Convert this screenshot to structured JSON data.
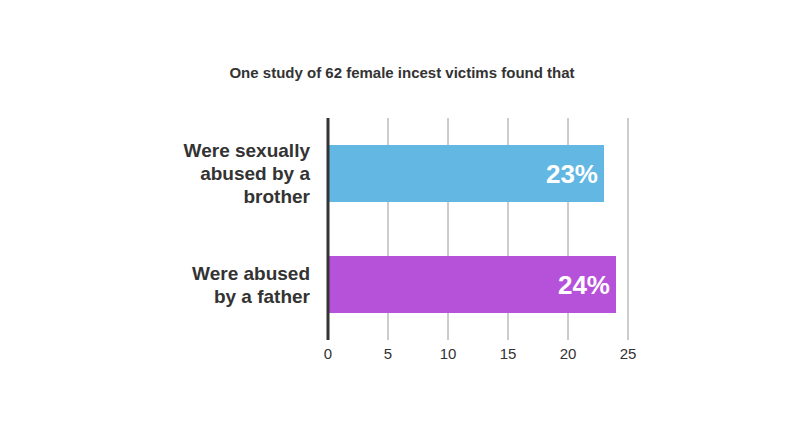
{
  "chart_data": {
    "type": "bar",
    "orientation": "horizontal",
    "title": "One study of 62 female incest victims found that",
    "categories": [
      "Were sexually abused by a brother",
      "Were abused by a father"
    ],
    "values": [
      23,
      24
    ],
    "value_labels": [
      "23%",
      "24%"
    ],
    "colors": [
      "#62b8e3",
      "#b652d9"
    ],
    "xlim": [
      0,
      25
    ],
    "xticks": [
      0,
      5,
      10,
      15,
      20,
      25
    ],
    "grid": true,
    "data_labels": true
  }
}
